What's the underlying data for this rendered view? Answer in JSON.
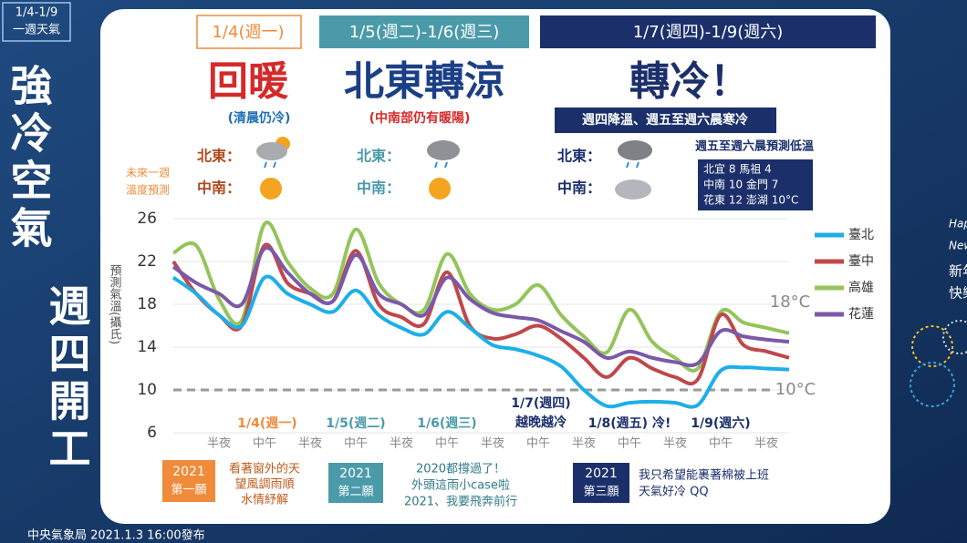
{
  "badge": [
    "1/4-1/9",
    "一週天氣"
  ],
  "side_title": [
    "強冷空氣",
    "週四開工"
  ],
  "columns": [
    {
      "date": "1/4(週一)",
      "headline": "回暖",
      "note": "(清晨仍冷)",
      "rows": [
        "北東：",
        "中南："
      ]
    },
    {
      "date": "1/5(週二)-1/6(週三)",
      "headline": "北東轉涼",
      "note": "(中南部仍有暖陽)",
      "rows": [
        "北東：",
        "中南："
      ]
    },
    {
      "date": "1/7(週四)-1/9(週六)",
      "headline": "轉冷！",
      "note": "週四降溫、週五至週六晨寒冷",
      "rows": [
        "北東：",
        "中南："
      ]
    }
  ],
  "side_label": [
    "未來一週",
    "溫度預測"
  ],
  "low_temp": {
    "title": "週五至週六晨預測低溫",
    "lines": [
      "北宜 8  馬祖 4",
      "中南 10 金門 7",
      "花東 12 澎湖 10°C"
    ]
  },
  "chart_data": {
    "type": "line",
    "y_label": "預測氣溫(攝氏)",
    "categories": [
      null,
      null,
      "半夜",
      null,
      "中午",
      null,
      "半夜",
      null,
      "中午",
      null,
      "半夜",
      null,
      "中午",
      null,
      "半夜",
      null,
      "中午",
      null,
      "半夜",
      null,
      "中午",
      null,
      "半夜",
      null,
      "中午",
      null,
      "半夜",
      null
    ],
    "series": [
      {
        "name": "臺北",
        "color": "#1eaee8",
        "values": [
          20.5,
          19,
          17,
          16,
          20.5,
          19,
          18,
          17.3,
          19.3,
          17,
          15.8,
          15.2,
          17.3,
          15.8,
          14.2,
          13.8,
          13.2,
          12.2,
          10,
          8.5,
          8.8,
          8.9,
          8.8,
          8.6,
          11.8,
          12.1,
          12,
          11.9
        ]
      },
      {
        "name": "臺中",
        "color": "#c0474a",
        "values": [
          22,
          19,
          17,
          16,
          23.5,
          20,
          19,
          18.3,
          23,
          18,
          16.8,
          16.2,
          21,
          16,
          14.8,
          15.2,
          16,
          14.8,
          13,
          11.2,
          13,
          12,
          11.2,
          11,
          17,
          14.2,
          13.6,
          13
        ]
      },
      {
        "name": "高雄",
        "color": "#94c45a",
        "values": [
          22.8,
          23.5,
          18.5,
          16.5,
          25.5,
          22,
          19.5,
          19,
          25,
          20,
          18,
          17.5,
          22.7,
          19,
          17.5,
          18,
          19.8,
          17,
          15,
          13.5,
          17.5,
          14.5,
          13,
          12,
          17.3,
          16.3,
          15.8,
          15.3
        ]
      },
      {
        "name": "花蓮",
        "color": "#7b59a8",
        "values": [
          21.5,
          20,
          19,
          18,
          23.2,
          21,
          19,
          18.3,
          22.6,
          19,
          18,
          17,
          20.5,
          18.5,
          17.2,
          16.8,
          16.5,
          15.5,
          14.5,
          13,
          13.6,
          13,
          12.6,
          12.5,
          15.5,
          15,
          14.7,
          14.5
        ]
      }
    ],
    "ylim": [
      6,
      26
    ],
    "yticks": [
      6,
      10,
      14,
      18,
      22,
      26
    ],
    "grid": true,
    "ref_lines": [
      {
        "value": 10,
        "label": "10°C",
        "dashed": true
      }
    ],
    "ref_labels": [
      {
        "value": 18,
        "label": "18°C"
      }
    ],
    "annotations": [
      [
        "1/4(週一)"
      ],
      [
        "1/5(週二)"
      ],
      [
        "1/6(週三)"
      ],
      [
        "1/7(週四)",
        "越晚越冷"
      ],
      [
        "1/8(週五) 冷!"
      ],
      [
        "1/9(週六)"
      ]
    ]
  },
  "wishes": [
    {
      "year": "2021",
      "rank": "第一願",
      "text": [
        "看著窗外的天",
        "望風調雨順",
        "水情紓解"
      ]
    },
    {
      "year": "2021",
      "rank": "第二願",
      "text": [
        "2020都撐過了！",
        "外頭這雨小case啦",
        "2021、我要飛奔前行"
      ]
    },
    {
      "year": "2021",
      "rank": "第三願",
      "text": [
        "我只希望能裹著棉被上班",
        "天氣好冷 QQ"
      ]
    }
  ],
  "new_year": [
    "Happy",
    "New Year",
    "新年",
    "快樂"
  ],
  "footer": "中央氣象局 2021.1.3 16:00發布"
}
